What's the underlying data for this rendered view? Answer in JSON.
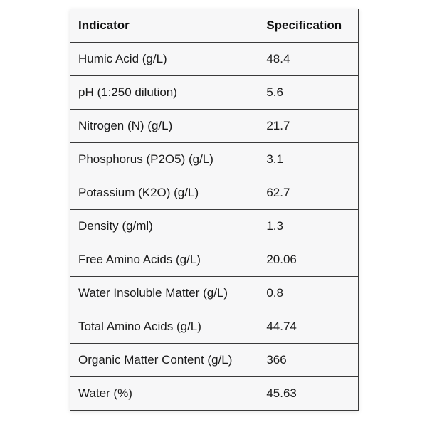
{
  "table": {
    "headers": [
      "Indicator",
      "Specification"
    ],
    "rows": [
      [
        "Humic Acid (g/L)",
        "48.4"
      ],
      [
        "pH (1:250 dilution)",
        "5.6"
      ],
      [
        "Nitrogen (N) (g/L)",
        "21.7"
      ],
      [
        "Phosphorus (P2O5) (g/L)",
        "3.1"
      ],
      [
        "Potassium (K2O) (g/L)",
        "62.7"
      ],
      [
        "Density (g/ml)",
        "1.3"
      ],
      [
        "Free Amino Acids (g/L)",
        "20.06"
      ],
      [
        "Water Insoluble Matter (g/L)",
        "0.8"
      ],
      [
        "Total Amino Acids (g/L)",
        "44.74"
      ],
      [
        "Organic Matter Content (g/L)",
        "366"
      ],
      [
        "Water (%)",
        "45.63"
      ]
    ]
  },
  "colors": {
    "cell_background": "#f7f7f8",
    "border": "#3a3a3a",
    "text": "#1a1a1a",
    "page_background": "#ffffff"
  }
}
